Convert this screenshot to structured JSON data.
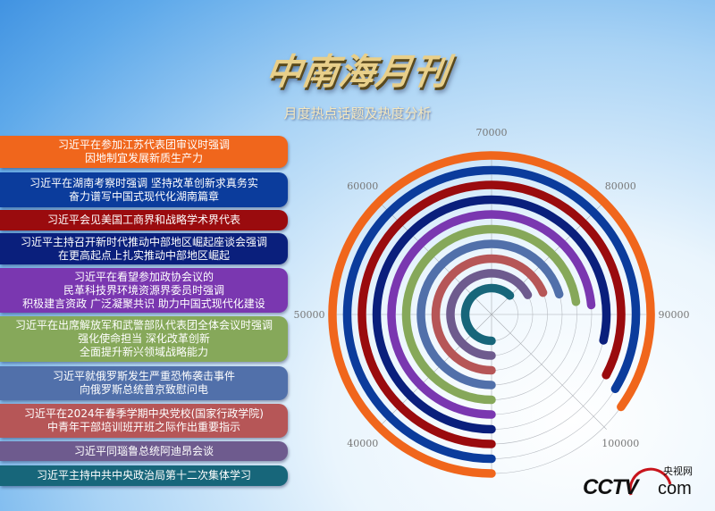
{
  "header": {
    "title": "中南海月刊",
    "subtitle": "月度热点话题及热度分析"
  },
  "logo": {
    "brand": "CCTV",
    "cn": "央视网",
    "domain": "com"
  },
  "chart_data": {
    "type": "radial-bar",
    "angular_axis": {
      "range": [
        30000,
        110000
      ],
      "ticks": [
        40000,
        50000,
        60000,
        70000,
        80000,
        90000,
        100000
      ],
      "start": "bottom",
      "direction": "clockwise"
    },
    "grid": true,
    "categories": [
      "习近平在参加江苏代表团审议时强调\n因地制宜发展新质生产力",
      "习近平在湖南考察时强调 坚持改革创新求真务实\n奋力谱写中国式现代化湖南篇章",
      "习近平会见美国工商界和战略学术界代表",
      "习近平主持召开新时代推动中部地区崛起座谈会强调\n在更高起点上扎实推动中部地区崛起",
      "习近平在看望参加政协会议的\n民革科技界环境资源界委员时强调\n积极建言资政 广泛凝聚共识 助力中国式现代化建设",
      "习近平在出席解放军和武警部队代表团全体会议时强调\n强化使命担当 深化改革创新\n全面提升新兴领域战略能力",
      "习近平就俄罗斯发生严重恐怖袭击事件\n向俄罗斯总统普京致慰问电",
      "习近平在2024年春季学期中央党校(国家行政学院)\n中青年干部培训班开班之际作出重要指示",
      "习近平同瑙鲁总统阿迪昂会谈",
      "习近平主持中共中央政治局第十二次集体学习"
    ],
    "values": [
      97900,
      96900,
      96200,
      92900,
      88800,
      88100,
      86300,
      84900,
      83700,
      79800
    ],
    "colors": [
      "#f0661c",
      "#0b3c9c",
      "#9a0b0e",
      "#0a1f7c",
      "#7a37b0",
      "#86a85a",
      "#5170aa",
      "#b65657",
      "#6e5b8e",
      "#17667a"
    ]
  }
}
